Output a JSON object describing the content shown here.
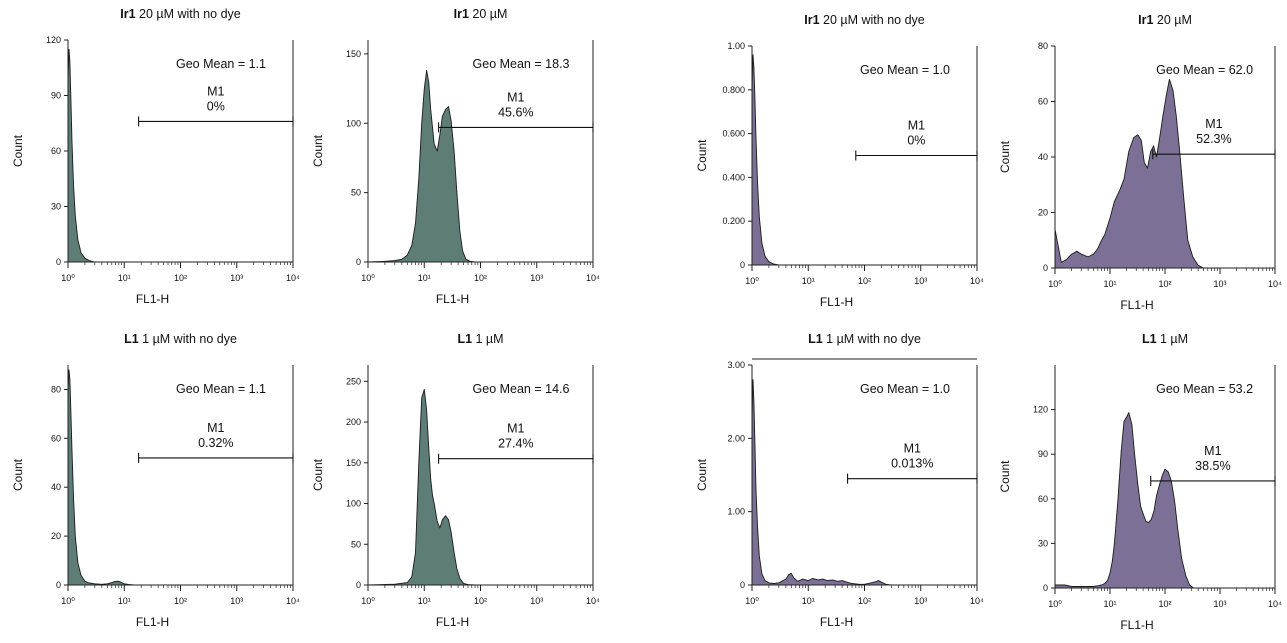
{
  "figure": {
    "colors": {
      "teal": "#5e7d77",
      "purple": "#7c7096",
      "axis": "#222222",
      "background": "#ffffff"
    }
  },
  "chart_data": [
    {
      "id": "p1",
      "type": "area",
      "series_color": "teal",
      "title": {
        "bold": "Ir1",
        "rest": " 20 µM with no dye"
      },
      "xlabel": "FL1-H",
      "ylabel": "Count",
      "xscale": "log",
      "xlim": [
        1,
        10000
      ],
      "xtick_labels": [
        "10⁰",
        "10¹",
        "10²",
        "10³",
        "10⁴"
      ],
      "ylim": [
        0,
        120
      ],
      "yticks": [
        0,
        30,
        60,
        90,
        120
      ],
      "ytick_labels": [
        "0",
        "30",
        "60",
        "90",
        "120"
      ],
      "x": [
        1.0,
        1.04,
        1.08,
        1.12,
        1.18,
        1.25,
        1.35,
        1.5,
        1.7,
        2.0,
        2.4,
        3,
        10000
      ],
      "y": [
        100,
        115,
        108,
        90,
        65,
        42,
        25,
        12,
        5,
        2,
        0.7,
        0,
        0
      ],
      "geo_mean": "Geo Mean = 1.1",
      "gate_label": "M1",
      "gate_pct": "0%",
      "gate": {
        "x_start": 18,
        "x_end": 10000,
        "y": 76
      }
    },
    {
      "id": "p2",
      "type": "area",
      "series_color": "teal",
      "title": {
        "bold": "Ir1",
        "rest": " 20 µM"
      },
      "xlabel": "FL1-H",
      "ylabel": "Count",
      "xscale": "log",
      "xlim": [
        1,
        10000
      ],
      "xtick_labels": [
        "10⁰",
        "10¹",
        "10²",
        "10³",
        "10⁴"
      ],
      "ylim": [
        0,
        160
      ],
      "yticks": [
        0,
        50,
        100,
        150
      ],
      "ytick_labels": [
        "0",
        "50",
        "100",
        "150"
      ],
      "x": [
        1,
        2,
        3,
        4,
        5,
        6,
        7,
        8,
        9,
        10,
        11,
        12,
        13,
        15,
        17,
        19,
        21,
        24,
        27,
        30,
        34,
        38,
        43,
        48,
        55,
        65,
        80,
        100,
        10000
      ],
      "y": [
        0,
        0.5,
        1,
        2,
        5,
        12,
        28,
        60,
        100,
        125,
        138,
        130,
        110,
        85,
        80,
        92,
        105,
        110,
        112,
        102,
        80,
        50,
        22,
        8,
        2,
        0.5,
        0,
        0,
        0
      ],
      "geo_mean": "Geo Mean = 18.3",
      "gate_label": "M1",
      "gate_pct": "45.6%",
      "gate": {
        "x_start": 18,
        "x_end": 10000,
        "y": 97
      }
    },
    {
      "id": "p3",
      "type": "area",
      "series_color": "purple",
      "title": {
        "bold": "Ir1",
        "rest": " 20 µM with no dye"
      },
      "xlabel": "FL1-H",
      "ylabel": "Count",
      "xscale": "log",
      "xlim": [
        1,
        10000
      ],
      "xtick_labels": [
        "10⁰",
        "10¹",
        "10²",
        "10³",
        "10⁴"
      ],
      "ylim": [
        0,
        1.0
      ],
      "yticks": [
        0,
        0.2,
        0.4,
        0.6,
        0.8,
        1.0
      ],
      "ytick_labels": [
        "0",
        "0.200",
        "0.400",
        "0.600",
        "0.800",
        "1.00"
      ],
      "x": [
        1.0,
        1.04,
        1.08,
        1.12,
        1.18,
        1.25,
        1.35,
        1.5,
        1.7,
        2.0,
        2.4,
        3,
        10000
      ],
      "y": [
        0.82,
        0.96,
        0.9,
        0.78,
        0.58,
        0.38,
        0.22,
        0.1,
        0.04,
        0.015,
        0.005,
        0,
        0
      ],
      "geo_mean": "Geo Mean = 1.0",
      "gate_label": "M1",
      "gate_pct": "0%",
      "gate": {
        "x_start": 70,
        "x_end": 10000,
        "y": 0.5
      }
    },
    {
      "id": "p4",
      "type": "area",
      "series_color": "purple",
      "title": {
        "bold": "Ir1",
        "rest": " 20 µM"
      },
      "xlabel": "FL1-H",
      "ylabel": "Count",
      "xscale": "log",
      "xlim": [
        1,
        10000
      ],
      "xtick_labels": [
        "10⁰",
        "10¹",
        "10²",
        "10³",
        "10⁴"
      ],
      "ylim": [
        0,
        80
      ],
      "yticks": [
        0,
        20,
        40,
        60,
        80
      ],
      "ytick_labels": [
        "0",
        "20",
        "40",
        "60",
        "80"
      ],
      "x": [
        1,
        1.3,
        1.6,
        2,
        2.5,
        3,
        4,
        5,
        6,
        7,
        8,
        10,
        12,
        15,
        18,
        22,
        27,
        32,
        37,
        42,
        48,
        55,
        62,
        70,
        80,
        92,
        105,
        120,
        140,
        160,
        185,
        220,
        260,
        320,
        400,
        500,
        10000
      ],
      "y": [
        14,
        2,
        3,
        5,
        6,
        5,
        4,
        5,
        7,
        10,
        12,
        18,
        24,
        28,
        32,
        42,
        47,
        48,
        46,
        38,
        36,
        42,
        44,
        40,
        47,
        55,
        62,
        68,
        64,
        55,
        42,
        25,
        10,
        4,
        1,
        0,
        0
      ],
      "geo_mean": "Geo Mean = 62.0",
      "gate_label": "M1",
      "gate_pct": "52.3%",
      "gate": {
        "x_start": 60,
        "x_end": 10000,
        "y": 41
      }
    },
    {
      "id": "p5",
      "type": "area",
      "series_color": "teal",
      "title": {
        "bold": "L1",
        "rest": " 1 µM with no dye"
      },
      "xlabel": "FL1-H",
      "ylabel": "Count",
      "xscale": "log",
      "xlim": [
        1,
        10000
      ],
      "xtick_labels": [
        "10⁰",
        "10¹",
        "10²",
        "10³",
        "10⁴"
      ],
      "ylim": [
        0,
        90
      ],
      "yticks": [
        0,
        20,
        40,
        60,
        80
      ],
      "ytick_labels": [
        "0",
        "20",
        "40",
        "60",
        "80"
      ],
      "x": [
        1.0,
        1.04,
        1.08,
        1.12,
        1.18,
        1.25,
        1.35,
        1.5,
        1.7,
        2.0,
        2.4,
        3,
        4,
        5,
        6,
        7,
        8,
        9,
        10,
        12,
        15,
        10000
      ],
      "y": [
        80,
        88,
        84,
        72,
        55,
        36,
        20,
        9,
        4,
        1.5,
        0.8,
        0.5,
        0.3,
        0.5,
        1,
        1.5,
        1.5,
        1,
        0.5,
        0.2,
        0,
        0
      ],
      "geo_mean": "Geo Mean = 1.1",
      "gate_label": "M1",
      "gate_pct": "0.32%",
      "gate": {
        "x_start": 18,
        "x_end": 10000,
        "y": 52
      }
    },
    {
      "id": "p6",
      "type": "area",
      "series_color": "teal",
      "title": {
        "bold": "L1",
        "rest": " 1 µM"
      },
      "xlabel": "FL1-H",
      "ylabel": "Count",
      "xscale": "log",
      "xlim": [
        1,
        10000
      ],
      "xtick_labels": [
        "10⁰",
        "10¹",
        "10²",
        "10³",
        "10⁴"
      ],
      "ylim": [
        0,
        270
      ],
      "yticks": [
        0,
        50,
        100,
        150,
        200,
        250
      ],
      "ytick_labels": [
        "0",
        "50",
        "100",
        "150",
        "200",
        "250"
      ],
      "x": [
        1,
        3,
        5,
        6,
        7,
        8,
        9,
        10,
        11,
        12,
        13,
        14,
        15,
        17,
        19,
        21,
        24,
        27,
        30,
        34,
        38,
        43,
        50,
        60,
        80,
        10000
      ],
      "y": [
        0,
        1,
        3,
        10,
        40,
        150,
        230,
        240,
        215,
        170,
        130,
        110,
        100,
        78,
        70,
        80,
        85,
        80,
        65,
        40,
        20,
        8,
        2,
        0.5,
        0,
        0
      ],
      "geo_mean": "Geo Mean = 14.6",
      "gate_label": "M1",
      "gate_pct": "27.4%",
      "gate": {
        "x_start": 18,
        "x_end": 10000,
        "y": 155
      }
    },
    {
      "id": "p7",
      "type": "area",
      "series_color": "purple",
      "title": {
        "bold": "L1",
        "rest": " 1 µM with no dye"
      },
      "xlabel": "FL1-H",
      "ylabel": "Count",
      "xscale": "log",
      "xlim": [
        1,
        10000
      ],
      "xtick_labels": [
        "10⁰",
        "10¹",
        "10²",
        "10³",
        "10⁴"
      ],
      "ylim": [
        0,
        3.0
      ],
      "yticks": [
        0,
        1.0,
        2.0,
        3.0
      ],
      "ytick_labels": [
        "0",
        "1.00",
        "2.00",
        "3.00"
      ],
      "x": [
        1.0,
        1.04,
        1.08,
        1.12,
        1.18,
        1.25,
        1.35,
        1.5,
        1.7,
        2.0,
        2.4,
        3,
        4,
        4.5,
        5,
        5.5,
        6.5,
        8,
        10,
        12,
        15,
        18,
        22,
        27,
        33,
        40,
        48,
        60,
        80,
        100,
        150,
        180,
        200,
        240,
        300,
        10000
      ],
      "y": [
        2.3,
        2.8,
        2.5,
        2.0,
        1.3,
        0.8,
        0.4,
        0.15,
        0.06,
        0.03,
        0.02,
        0.03,
        0.08,
        0.14,
        0.16,
        0.1,
        0.05,
        0.08,
        0.06,
        0.09,
        0.07,
        0.08,
        0.06,
        0.07,
        0.05,
        0.06,
        0.04,
        0.02,
        0.01,
        0.01,
        0.04,
        0.06,
        0.04,
        0.01,
        0,
        0
      ],
      "geo_mean": "Geo Mean = 1.0",
      "gate_label": "M1",
      "gate_pct": "0.013%",
      "gate": {
        "x_start": 50,
        "x_end": 10000,
        "y": 1.45
      }
    },
    {
      "id": "p8",
      "type": "area",
      "series_color": "purple",
      "title": {
        "bold": "L1",
        "rest": " 1 µM"
      },
      "xlabel": "FL1-H",
      "ylabel": "Count",
      "xscale": "log",
      "xlim": [
        1,
        10000
      ],
      "xtick_labels": [
        "10⁰",
        "10¹",
        "10²",
        "10³",
        "10⁴"
      ],
      "ylim": [
        0,
        150
      ],
      "yticks": [
        0,
        30,
        60,
        90,
        120
      ],
      "ytick_labels": [
        "0",
        "30",
        "60",
        "90",
        "120"
      ],
      "x": [
        1,
        1.5,
        2,
        3,
        4,
        5,
        6,
        7,
        8,
        9,
        10,
        11,
        12,
        14,
        16,
        18,
        20,
        22,
        25,
        28,
        32,
        36,
        40,
        45,
        50,
        56,
        63,
        70,
        80,
        90,
        100,
        115,
        130,
        150,
        170,
        200,
        240,
        280,
        330,
        10000
      ],
      "y": [
        2,
        2,
        1,
        1,
        1,
        1,
        1.5,
        2,
        3,
        5,
        10,
        18,
        30,
        60,
        92,
        112,
        115,
        118,
        110,
        90,
        70,
        55,
        50,
        45,
        44,
        46,
        52,
        62,
        70,
        76,
        80,
        78,
        72,
        58,
        40,
        20,
        8,
        2,
        0,
        0
      ],
      "geo_mean": "Geo Mean = 53.2",
      "gate_label": "M1",
      "gate_pct": "38.5%",
      "gate": {
        "x_start": 55,
        "x_end": 10000,
        "y": 72
      }
    }
  ]
}
